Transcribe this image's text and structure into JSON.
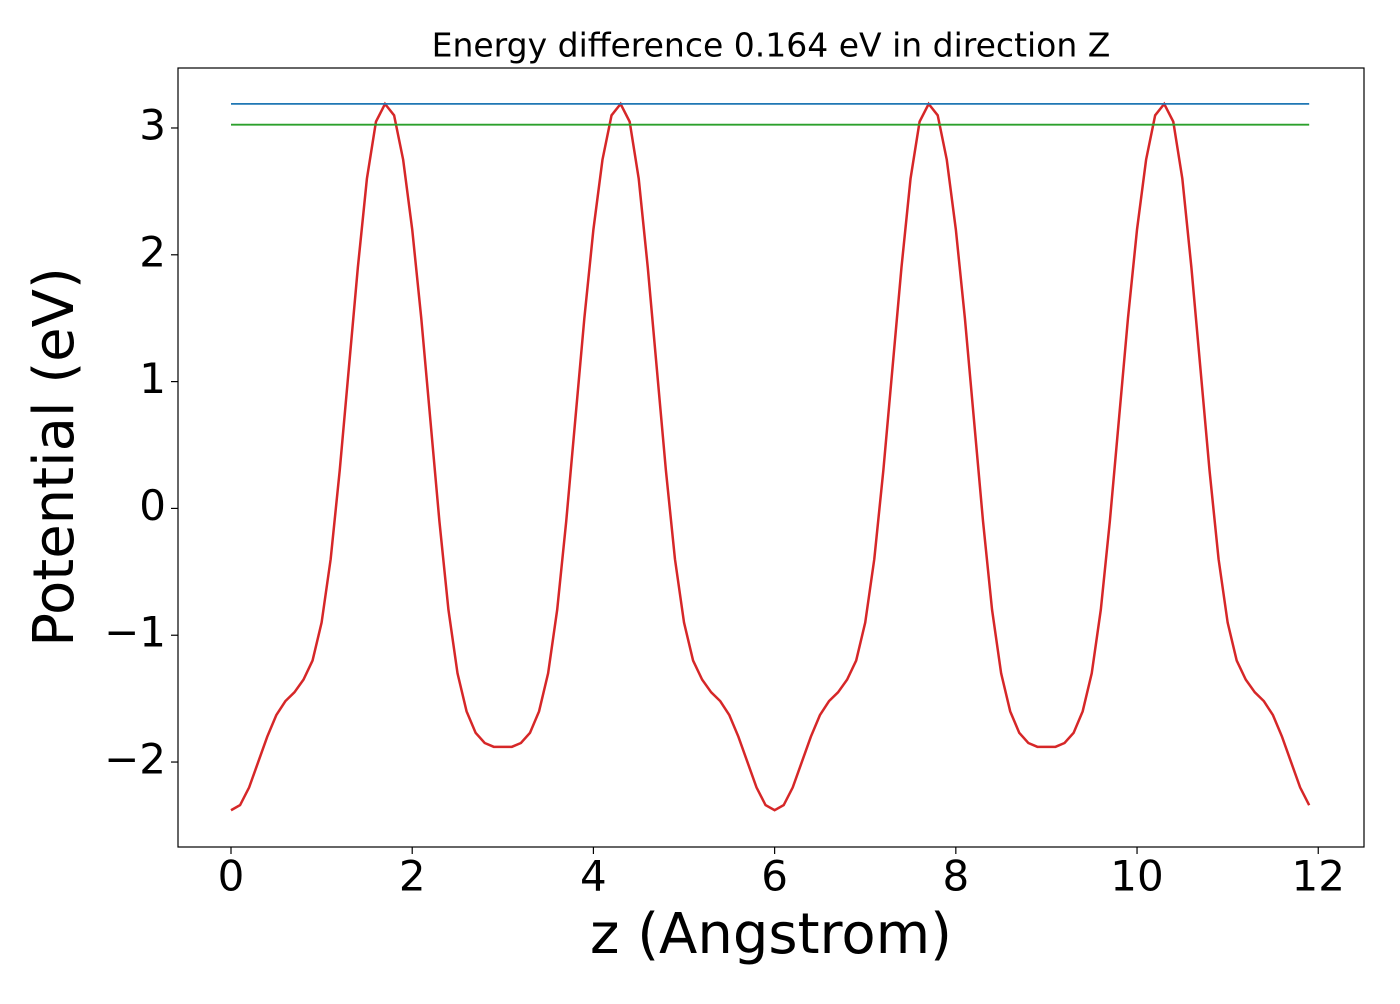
{
  "chart_data": {
    "type": "line",
    "title": "Energy difference 0.164 eV in direction Z",
    "xlabel": "z (Angstrom)",
    "ylabel": "Potential (eV)",
    "xlim": [
      -0.585,
      12.505
    ],
    "ylim": [
      -2.67,
      3.473
    ],
    "xticks": [
      0,
      2,
      4,
      6,
      8,
      10,
      12
    ],
    "yticks": [
      {
        "value": -2,
        "label": "−2"
      },
      {
        "value": -1,
        "label": "−1"
      },
      0,
      1,
      2,
      3
    ],
    "series": [
      {
        "color": "#d62728",
        "x": [
          0,
          0.1,
          0.2,
          0.3,
          0.4,
          0.5,
          0.6,
          0.7,
          0.8,
          0.9,
          1,
          1.1,
          1.2,
          1.3,
          1.4,
          1.5,
          1.6,
          1.7,
          1.8,
          1.9,
          2,
          2.1,
          2.2,
          2.3,
          2.4,
          2.5,
          2.6,
          2.7,
          2.8,
          2.9,
          3,
          3.1,
          3.2,
          3.3,
          3.4,
          3.5,
          3.6,
          3.7,
          3.8,
          3.9,
          4,
          4.1,
          4.2,
          4.3,
          4.4,
          4.5,
          4.6,
          4.7,
          4.8,
          4.9,
          5,
          5.1,
          5.2,
          5.3,
          5.4,
          5.5,
          5.6,
          5.7,
          5.8,
          5.9,
          6,
          6.1,
          6.2,
          6.3,
          6.4,
          6.5,
          6.6,
          6.7,
          6.8,
          6.9,
          7,
          7.1,
          7.2,
          7.3,
          7.4,
          7.5,
          7.6,
          7.7,
          7.8,
          7.9,
          8,
          8.1,
          8.2,
          8.3,
          8.4,
          8.5,
          8.6,
          8.7,
          8.8,
          8.9,
          9,
          9.1,
          9.2,
          9.3,
          9.4,
          9.5,
          9.6,
          9.7,
          9.8,
          9.9,
          10,
          10.1,
          10.2,
          10.3,
          10.4,
          10.5,
          10.6,
          10.7,
          10.8,
          10.9,
          11,
          11.1,
          11.2,
          11.3,
          11.4,
          11.5,
          11.6,
          11.7,
          11.8,
          11.9
        ],
        "values": [
          -2.38,
          -2.34,
          -2.2,
          -2.0,
          -1.8,
          -1.63,
          -1.52,
          -1.45,
          -1.35,
          -1.2,
          -0.9,
          -0.4,
          0.3,
          1.1,
          1.9,
          2.6,
          3.05,
          3.19,
          3.1,
          2.75,
          2.2,
          1.5,
          0.7,
          -0.1,
          -0.8,
          -1.3,
          -1.6,
          -1.77,
          -1.85,
          -1.88,
          -1.88,
          -1.88,
          -1.85,
          -1.77,
          -1.6,
          -1.3,
          -0.8,
          -0.1,
          0.7,
          1.5,
          2.2,
          2.75,
          3.1,
          3.19,
          3.05,
          2.6,
          1.9,
          1.1,
          0.3,
          -0.4,
          -0.9,
          -1.2,
          -1.35,
          -1.45,
          -1.52,
          -1.63,
          -1.8,
          -2.0,
          -2.2,
          -2.34,
          -2.38,
          -2.34,
          -2.2,
          -2.0,
          -1.8,
          -1.63,
          -1.52,
          -1.45,
          -1.35,
          -1.2,
          -0.9,
          -0.4,
          0.3,
          1.1,
          1.9,
          2.6,
          3.05,
          3.19,
          3.1,
          2.75,
          2.2,
          1.5,
          0.7,
          -0.1,
          -0.8,
          -1.3,
          -1.6,
          -1.77,
          -1.85,
          -1.88,
          -1.88,
          -1.88,
          -1.85,
          -1.77,
          -1.6,
          -1.3,
          -0.8,
          -0.1,
          0.7,
          1.5,
          2.2,
          2.75,
          3.1,
          3.19,
          3.05,
          2.6,
          1.9,
          1.1,
          0.3,
          -0.4,
          -0.9,
          -1.2,
          -1.35,
          -1.45,
          -1.52,
          -1.63,
          -1.8,
          -2.0,
          -2.2,
          -2.34
        ]
      },
      {
        "color": "#1f77b4",
        "x": [
          0,
          11.9
        ],
        "values": [
          3.19,
          3.19
        ]
      },
      {
        "color": "#2ca02c",
        "x": [
          0,
          11.9
        ],
        "values": [
          3.026,
          3.026
        ]
      }
    ]
  }
}
